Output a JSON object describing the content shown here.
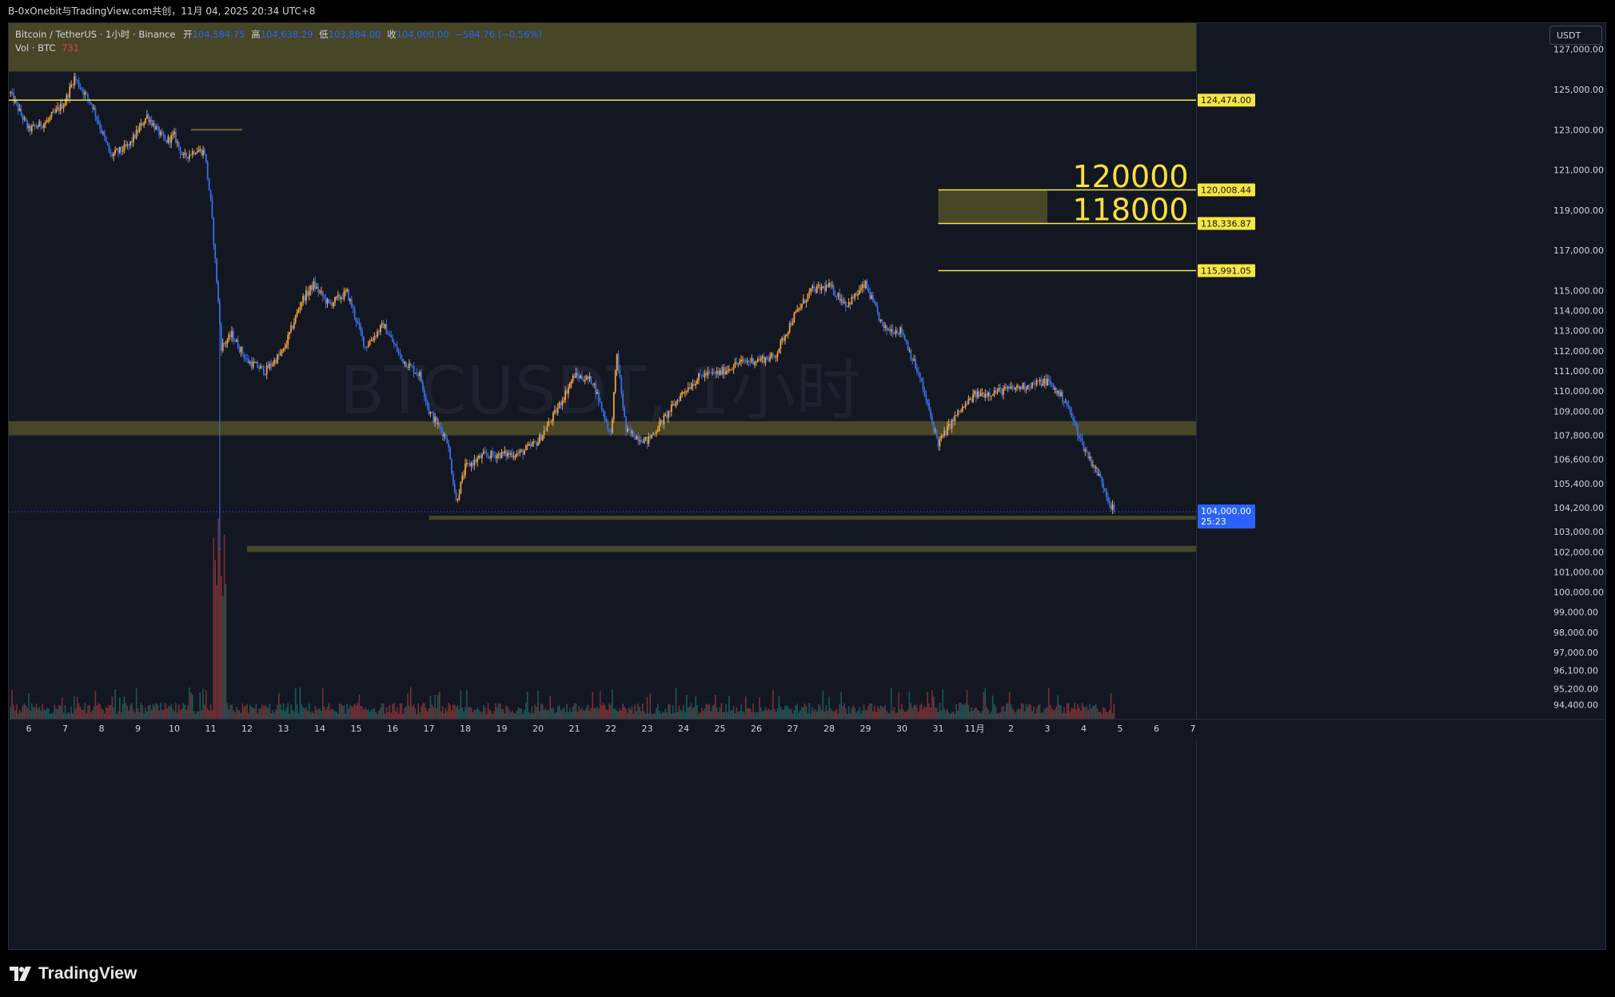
{
  "header": {
    "share_text": "B-0xOnebit与TradingView.com共创，11月 04, 2025 20:34 UTC+8"
  },
  "legend": {
    "symbol": "Bitcoin / TetherUS · 1小时 · Binance",
    "open_label": "开",
    "open": "104,584.75",
    "high_label": "高",
    "high": "104,638.29",
    "low_label": "低",
    "low": "103,884.00",
    "close_label": "收",
    "close": "104,000.00",
    "change": "−584.76 (−0.56%)",
    "vol_label": "Vol · BTC",
    "vol_value": "731"
  },
  "watermark": "BTCUSDT, 1小时",
  "axis_unit": "USDT",
  "branding": "TradingView",
  "colors": {
    "background": "#131722",
    "up": "#f0a33a",
    "down": "#3a6ee0",
    "zone": "#5b5a2a",
    "level_line": "#f5e642",
    "label_bg": "#f5e642",
    "price_label_bg": "#2962ff",
    "annotation": "#f7e03b"
  },
  "annotations": [
    {
      "text": "120000",
      "price": 120700,
      "time": "10/31"
    },
    {
      "text": "118000",
      "price": 119050,
      "time": "10/31"
    }
  ],
  "chart_data": {
    "type": "candlestick",
    "symbol": "BTCUSDT",
    "interval": "1小时",
    "x_tick_labels": [
      "6",
      "7",
      "8",
      "9",
      "10",
      "11",
      "12",
      "13",
      "14",
      "15",
      "16",
      "17",
      "18",
      "19",
      "20",
      "21",
      "22",
      "23",
      "24",
      "25",
      "26",
      "27",
      "28",
      "29",
      "30",
      "31",
      "11月",
      "2",
      "3",
      "4",
      "5",
      "6",
      "7"
    ],
    "y_tick_labels": [
      "127,000.00",
      "125,000.00",
      "123,000.00",
      "121,000.00",
      "119,000.00",
      "117,000.00",
      "115,000.00",
      "114,000.00",
      "113,000.00",
      "112,000.00",
      "111,000.00",
      "110,000.00",
      "109,000.00",
      "107,800.00",
      "106,600.00",
      "105,400.00",
      "104,200.00",
      "103,000.00",
      "102,000.00",
      "101,000.00",
      "100,000.00",
      "99,000.00",
      "98,000.00",
      "97,000.00",
      "96,100.00",
      "95,200.00",
      "94,400.00"
    ],
    "y_range": [
      93700,
      128300
    ],
    "price_levels": [
      {
        "price": 124474.0,
        "label": "124,474.00",
        "start": "10/5"
      },
      {
        "price": 120008.44,
        "label": "120,008.44",
        "start": "10/31"
      },
      {
        "price": 118336.87,
        "label": "118,336.87",
        "start": "10/31"
      },
      {
        "price": 115991.05,
        "label": "115,991.05",
        "start": "10/31"
      }
    ],
    "current_price": {
      "price": 104000.0,
      "label": "104,000.00",
      "countdown": "25:23"
    },
    "zones": [
      {
        "from": 125900,
        "to": 128300,
        "start": "10/5",
        "end": "right"
      },
      {
        "from": 118336.87,
        "to": 120008.44,
        "start": "10/31",
        "end": "11/3"
      },
      {
        "from": 107800,
        "to": 108500,
        "start": "10/5",
        "end": "right"
      },
      {
        "from": 103600,
        "to": 103800,
        "start": "10/17",
        "end": "right"
      },
      {
        "from": 102000,
        "to": 102300,
        "start": "10/12",
        "end": "right"
      }
    ],
    "path_anchors": [
      {
        "t": "10/5 12:00",
        "p": 124800
      },
      {
        "t": "10/6 00:00",
        "p": 123000
      },
      {
        "t": "10/6 12:00",
        "p": 123400
      },
      {
        "t": "10/7 00:00",
        "p": 124400
      },
      {
        "t": "10/7 06:00",
        "p": 125600
      },
      {
        "t": "10/7 18:00",
        "p": 124200
      },
      {
        "t": "10/8 06:00",
        "p": 121700
      },
      {
        "t": "10/8 18:00",
        "p": 122200
      },
      {
        "t": "10/9 06:00",
        "p": 123700
      },
      {
        "t": "10/9 18:00",
        "p": 122400
      },
      {
        "t": "10/10 00:00",
        "p": 122700
      },
      {
        "t": "10/10 06:00",
        "p": 121600
      },
      {
        "t": "10/10 14:00",
        "p": 122000
      },
      {
        "t": "10/10 20:00",
        "p": 121900
      },
      {
        "t": "10/11 00:00",
        "p": 119400
      },
      {
        "t": "10/11 04:00",
        "p": 115500
      },
      {
        "t": "10/11 07:00",
        "p": 112200
      },
      {
        "t": "10/11 14:00",
        "p": 112800
      },
      {
        "t": "10/12 00:00",
        "p": 111500
      },
      {
        "t": "10/12 12:00",
        "p": 111000
      },
      {
        "t": "10/13 00:00",
        "p": 112000
      },
      {
        "t": "10/13 12:00",
        "p": 114500
      },
      {
        "t": "10/13 20:00",
        "p": 115300
      },
      {
        "t": "10/14 06:00",
        "p": 114300
      },
      {
        "t": "10/14 18:00",
        "p": 114900
      },
      {
        "t": "10/15 06:00",
        "p": 112200
      },
      {
        "t": "10/15 18:00",
        "p": 113300
      },
      {
        "t": "10/16 06:00",
        "p": 111600
      },
      {
        "t": "10/16 18:00",
        "p": 110800
      },
      {
        "t": "10/17 00:00",
        "p": 109000
      },
      {
        "t": "10/17 12:00",
        "p": 107600
      },
      {
        "t": "10/17 18:00",
        "p": 104500
      },
      {
        "t": "10/18 00:00",
        "p": 106200
      },
      {
        "t": "10/18 12:00",
        "p": 106800
      },
      {
        "t": "10/19 12:00",
        "p": 106900
      },
      {
        "t": "10/20 00:00",
        "p": 107500
      },
      {
        "t": "10/20 12:00",
        "p": 109000
      },
      {
        "t": "10/21 00:00",
        "p": 110800
      },
      {
        "t": "10/21 12:00",
        "p": 110500
      },
      {
        "t": "10/22 00:00",
        "p": 107800
      },
      {
        "t": "10/22 04:00",
        "p": 111800
      },
      {
        "t": "10/22 10:00",
        "p": 108000
      },
      {
        "t": "10/23 00:00",
        "p": 107500
      },
      {
        "t": "10/23 12:00",
        "p": 108700
      },
      {
        "t": "10/24 00:00",
        "p": 110000
      },
      {
        "t": "10/24 12:00",
        "p": 110800
      },
      {
        "t": "10/25 00:00",
        "p": 110900
      },
      {
        "t": "10/25 12:00",
        "p": 111400
      },
      {
        "t": "10/26 12:00",
        "p": 111700
      },
      {
        "t": "10/27 00:00",
        "p": 113600
      },
      {
        "t": "10/27 12:00",
        "p": 115000
      },
      {
        "t": "10/28 00:00",
        "p": 115200
      },
      {
        "t": "10/28 12:00",
        "p": 114300
      },
      {
        "t": "10/29 00:00",
        "p": 115300
      },
      {
        "t": "10/29 12:00",
        "p": 113100
      },
      {
        "t": "10/30 00:00",
        "p": 113000
      },
      {
        "t": "10/30 12:00",
        "p": 110600
      },
      {
        "t": "10/31 00:00",
        "p": 107400
      },
      {
        "t": "10/31 12:00",
        "p": 108800
      },
      {
        "t": "11/1 00:00",
        "p": 109800
      },
      {
        "t": "11/2 00:00",
        "p": 110100
      },
      {
        "t": "11/3 00:00",
        "p": 110500
      },
      {
        "t": "11/3 12:00",
        "p": 109500
      },
      {
        "t": "11/4 00:00",
        "p": 107200
      },
      {
        "t": "11/4 12:00",
        "p": 105500
      },
      {
        "t": "11/4 18:00",
        "p": 104300
      },
      {
        "t": "11/4 20:00",
        "p": 104000
      }
    ]
  }
}
